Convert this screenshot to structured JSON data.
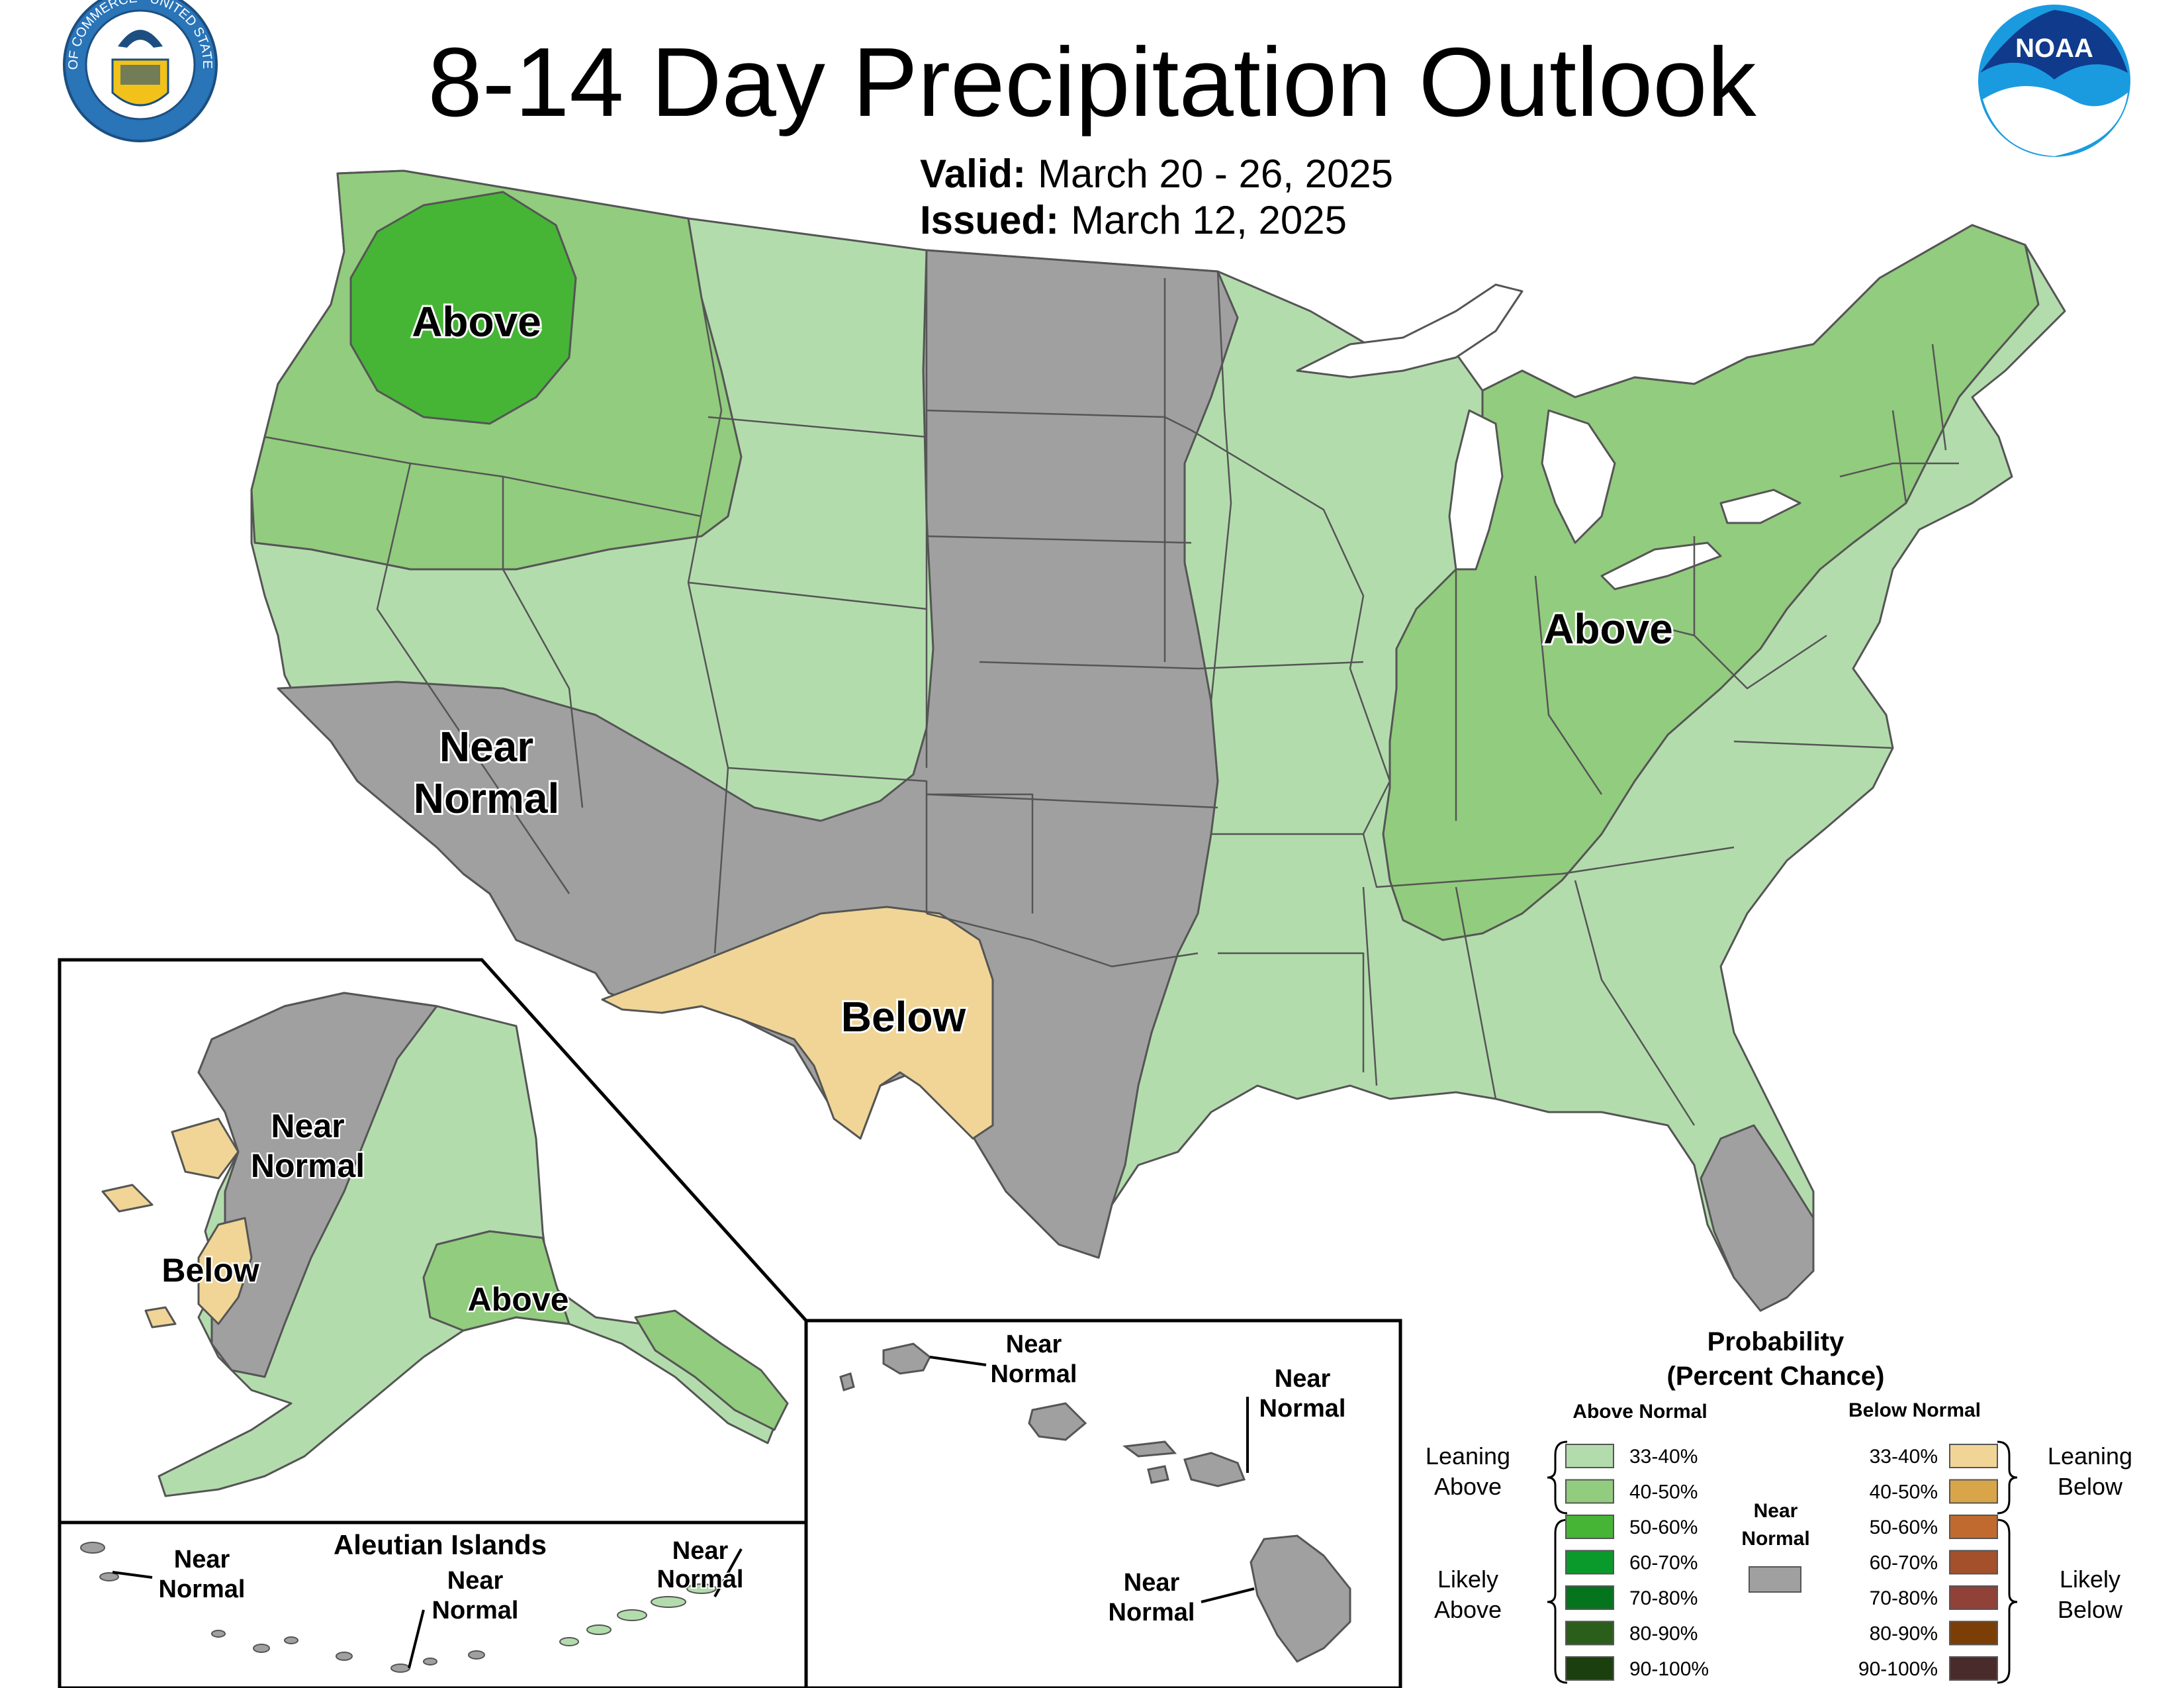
{
  "title": "8-14 Day Precipitation Outlook",
  "valid": {
    "label": "Valid:",
    "value": "March 20 - 26, 2025"
  },
  "issued": {
    "label": "Issued:",
    "value": "March 12, 2025"
  },
  "logos": {
    "commerce_seal": {
      "icon": "commerce-seal-icon",
      "text": "DEPARTMENT OF COMMERCE · UNITED STATES OF AMERICA"
    },
    "noaa": {
      "icon": "noaa-logo-icon",
      "text": "NOAA"
    }
  },
  "colors": {
    "lean_above": "#b3dcad",
    "above_40": "#92cc7e",
    "above_50": "#46b536",
    "above_60": "#0a9a2c",
    "above_70": "#05751d",
    "above_80": "#2b5e1a",
    "above_90": "#1c3f0f",
    "near_normal": "#a0a0a0",
    "below_33": "#f0d596",
    "below_40": "#d9a549",
    "below_50": "#c06a2f",
    "below_60": "#a4502b",
    "below_70": "#904138",
    "below_80": "#7c3e07",
    "below_90": "#4a2b2b",
    "water": "#ffffff",
    "border": "#555555"
  },
  "map_labels": {
    "conus": [
      {
        "lines": [
          "Above"
        ]
      },
      {
        "lines": [
          "Near",
          "Normal"
        ]
      },
      {
        "lines": [
          "Below"
        ]
      },
      {
        "lines": [
          "Above"
        ]
      }
    ],
    "alaska": [
      {
        "lines": [
          "Near",
          "Normal"
        ]
      },
      {
        "lines": [
          "Below"
        ]
      },
      {
        "lines": [
          "Above"
        ]
      }
    ],
    "aleutian_title": "Aleutian Islands",
    "aleutians": [
      {
        "lines": [
          "Near",
          "Normal"
        ]
      },
      {
        "lines": [
          "Near",
          "Normal"
        ]
      },
      {
        "lines": [
          "Near",
          "Normal"
        ]
      }
    ],
    "hawaii": [
      {
        "lines": [
          "Near",
          "Normal"
        ]
      },
      {
        "lines": [
          "Near",
          "Normal"
        ]
      },
      {
        "lines": [
          "Near",
          "Normal"
        ]
      }
    ]
  },
  "legend": {
    "title_lines": [
      "Probability",
      "(Percent Chance)"
    ],
    "above_header": "Above Normal",
    "below_header": "Below Normal",
    "near_lines": [
      "Near",
      "Normal"
    ],
    "leaning_above": [
      "Leaning",
      "Above"
    ],
    "likely_above": [
      "Likely",
      "Above"
    ],
    "leaning_below": [
      "Leaning",
      "Below"
    ],
    "likely_below": [
      "Likely",
      "Below"
    ],
    "above": [
      {
        "label": "33-40%",
        "color": "#b3dcad"
      },
      {
        "label": "40-50%",
        "color": "#92cc7e"
      },
      {
        "label": "50-60%",
        "color": "#46b536"
      },
      {
        "label": "60-70%",
        "color": "#0a9a2c"
      },
      {
        "label": "70-80%",
        "color": "#05751d"
      },
      {
        "label": "80-90%",
        "color": "#2b5e1a"
      },
      {
        "label": "90-100%",
        "color": "#1c3f0f"
      }
    ],
    "below": [
      {
        "label": "33-40%",
        "color": "#f0d596"
      },
      {
        "label": "40-50%",
        "color": "#d9a549"
      },
      {
        "label": "50-60%",
        "color": "#c06a2f"
      },
      {
        "label": "60-70%",
        "color": "#a4502b"
      },
      {
        "label": "70-80%",
        "color": "#904138"
      },
      {
        "label": "80-90%",
        "color": "#7c3e07"
      },
      {
        "label": "90-100%",
        "color": "#4a2b2b"
      }
    ],
    "near_color": "#a0a0a0"
  }
}
